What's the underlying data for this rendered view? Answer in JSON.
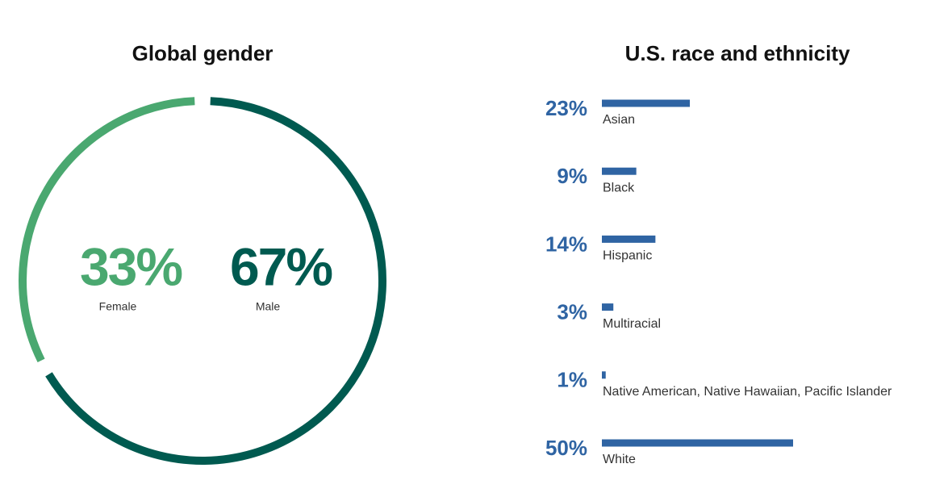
{
  "chart_data": [
    {
      "type": "pie",
      "title": "Global gender",
      "categories": [
        "Female",
        "Male"
      ],
      "values": [
        33,
        67
      ],
      "value_labels": [
        "33%",
        "67%"
      ],
      "colors": [
        "#4aa870",
        "#005a50"
      ]
    },
    {
      "type": "bar",
      "title": "U.S. race and ethnicity",
      "categories": [
        "Asian",
        "Black",
        "Hispanic",
        "Multiracial",
        "Native American, Native Hawaiian, Pacific Islander",
        "White"
      ],
      "values": [
        23,
        9,
        14,
        3,
        1,
        50
      ],
      "value_labels": [
        "23%",
        "9%",
        "14%",
        "3%",
        "1%",
        "50%"
      ],
      "color": "#2f64a3"
    }
  ]
}
